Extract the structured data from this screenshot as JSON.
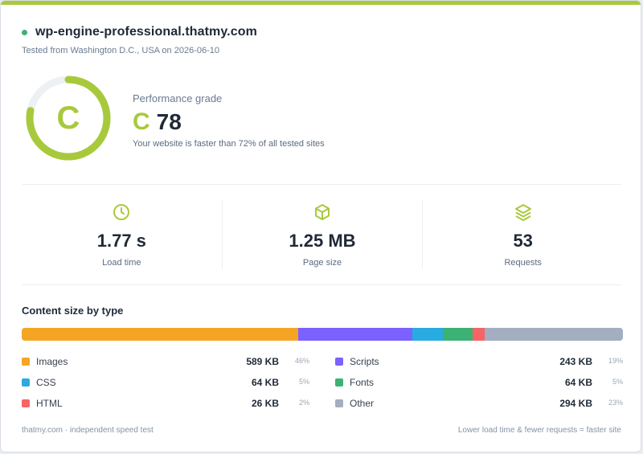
{
  "site": {
    "status_color": "#3bb273",
    "name": "wp-engine-professional.thatmy.com",
    "tested_line": "Tested from Washington D.C., USA on 2026-06-10"
  },
  "grade": {
    "ring_letter": "C",
    "label": "Performance grade",
    "letter": "C",
    "score": "78",
    "score_fraction": 0.78,
    "description": "Your website is faster than 72% of all tested sites",
    "accent_color": "#a8c93b"
  },
  "metrics": [
    {
      "icon": "clock-icon",
      "value": "1.77 s",
      "label": "Load time"
    },
    {
      "icon": "package-icon",
      "value": "1.25 MB",
      "label": "Page size"
    },
    {
      "icon": "layers-icon",
      "value": "53",
      "label": "Requests"
    }
  ],
  "content": {
    "title": "Content size by type",
    "items": [
      {
        "name": "Images",
        "size": "589 KB",
        "pct": "46%",
        "share": 0.46,
        "color": "#f5a524"
      },
      {
        "name": "Scripts",
        "size": "243 KB",
        "pct": "19%",
        "share": 0.19,
        "color": "#7b61ff"
      },
      {
        "name": "CSS",
        "size": "64 KB",
        "pct": "5%",
        "share": 0.05,
        "color": "#29abe2"
      },
      {
        "name": "Fonts",
        "size": "64 KB",
        "pct": "5%",
        "share": 0.05,
        "color": "#3bb273"
      },
      {
        "name": "HTML",
        "size": "26 KB",
        "pct": "2%",
        "share": 0.02,
        "color": "#f56565"
      },
      {
        "name": "Other",
        "size": "294 KB",
        "pct": "23%",
        "share": 0.23,
        "color": "#a3aec0"
      }
    ]
  },
  "footer": {
    "left": "thatmy.com · independent speed test",
    "right": "Lower load time & fewer requests = faster site"
  }
}
